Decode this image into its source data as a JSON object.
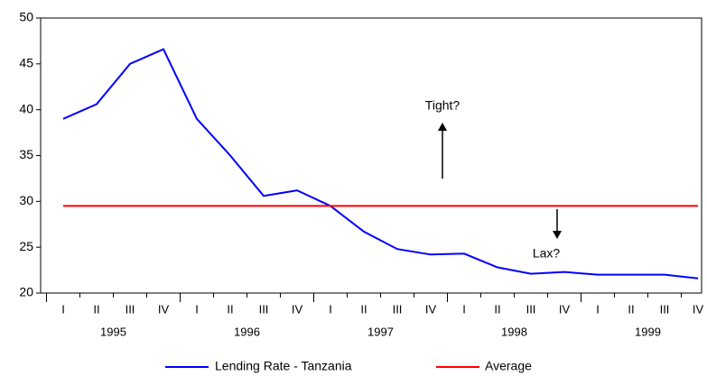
{
  "chart_data": {
    "type": "line",
    "categories": [
      "I",
      "II",
      "III",
      "IV",
      "I",
      "II",
      "III",
      "IV",
      "I",
      "II",
      "III",
      "IV",
      "I",
      "II",
      "III",
      "IV",
      "I",
      "II",
      "III",
      "IV"
    ],
    "years": [
      "1995",
      "1996",
      "1997",
      "1998",
      "1999"
    ],
    "series": [
      {
        "name": "Lending Rate - Tanzania",
        "color": "#0000ff",
        "values": [
          39.0,
          40.6,
          45.0,
          46.6,
          39.0,
          35.0,
          30.6,
          31.2,
          29.5,
          26.7,
          24.8,
          24.2,
          24.3,
          22.8,
          22.1,
          22.3,
          22.0,
          22.0,
          22.0,
          21.6
        ]
      },
      {
        "name": "Average",
        "color": "#ff0000",
        "values": [
          29.5,
          29.5,
          29.5,
          29.5,
          29.5,
          29.5,
          29.5,
          29.5,
          29.5,
          29.5,
          29.5,
          29.5,
          29.5,
          29.5,
          29.5,
          29.5,
          29.5,
          29.5,
          29.5,
          29.5
        ]
      }
    ],
    "annotations": [
      "Tight?",
      "Lax?"
    ],
    "ylim": [
      20,
      50
    ],
    "yticks": [
      20,
      25,
      30,
      35,
      40,
      45,
      50
    ],
    "grid": false,
    "legend": "bottom"
  }
}
